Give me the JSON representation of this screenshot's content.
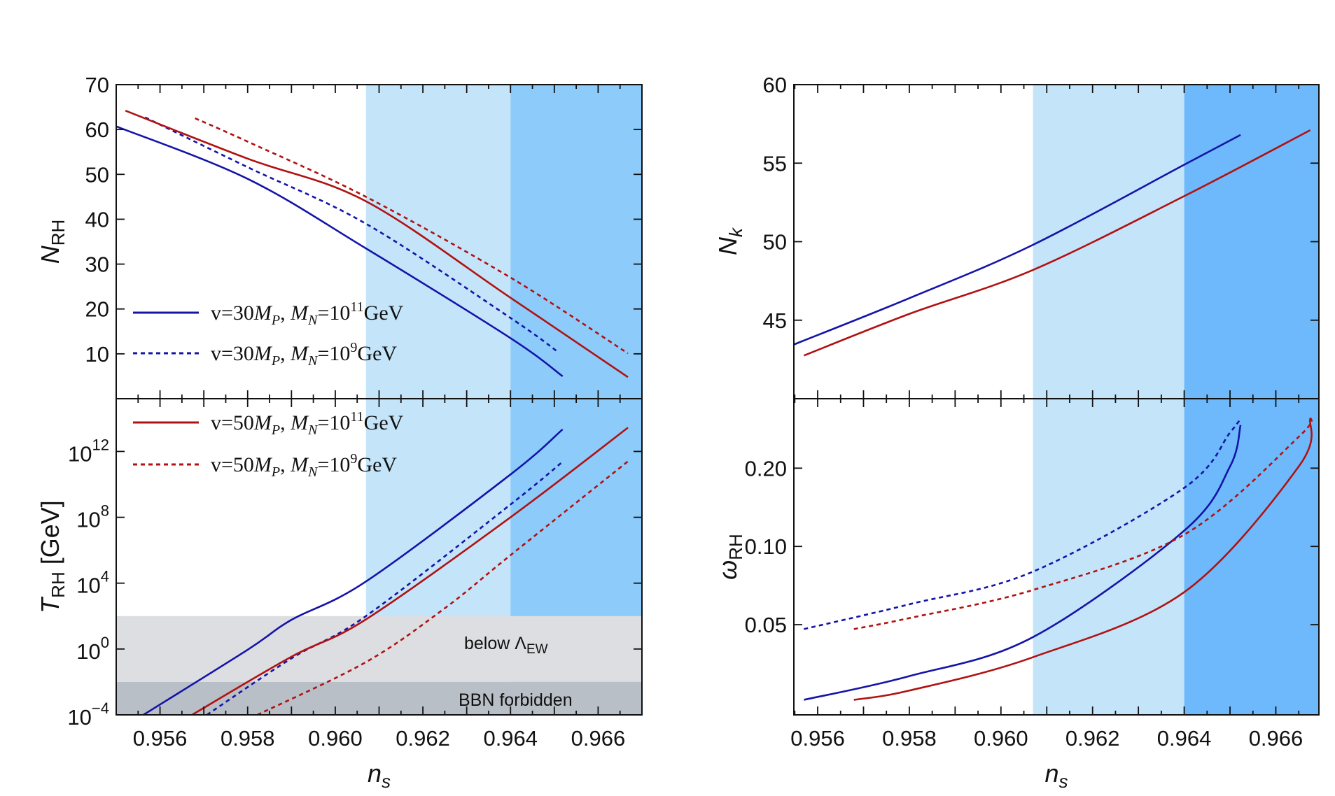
{
  "colors": {
    "blue": "#1414a8",
    "red": "#b01212",
    "shade_light": "#c4e4f9",
    "shade_dark_left": "#8ccbfa",
    "shade_dark_right": "#6eb9fb",
    "gray_light": "#dcdee2",
    "gray_dark": "#b9bfc6"
  },
  "chart_data": [
    {
      "id": "nrh",
      "type": "line",
      "ylabel": {
        "main": "N",
        "sub": "RH"
      },
      "xlim": [
        0.955,
        0.967
      ],
      "ylim": [
        0,
        70
      ],
      "yscale": "linear",
      "yticks": [
        10,
        20,
        30,
        40,
        50,
        60,
        70
      ],
      "ytick_labels": [
        "10",
        "20",
        "30",
        "40",
        "50",
        "60",
        "70"
      ],
      "shaded_x": [
        {
          "from": 0.9607,
          "to": 0.964,
          "shade": "light"
        },
        {
          "from": 0.964,
          "to": 0.967,
          "shade": "dark"
        }
      ],
      "series": [
        {
          "name_ref": 0,
          "color": "blue",
          "dash": false,
          "x": [
            0.955,
            0.958,
            0.9607,
            0.964,
            0.96519
          ],
          "y": [
            60.7,
            49,
            33.5,
            13.5,
            5
          ]
        },
        {
          "name_ref": 1,
          "color": "blue",
          "dash": true,
          "x": [
            0.95566,
            0.958,
            0.9607,
            0.964,
            0.9651
          ],
          "y": [
            62.7,
            51.6,
            39,
            18,
            10.3
          ]
        },
        {
          "name_ref": 2,
          "color": "red",
          "dash": false,
          "x": [
            0.95521,
            0.958,
            0.9607,
            0.964,
            0.96668
          ],
          "y": [
            64.2,
            53.5,
            44,
            22.5,
            4.8
          ]
        },
        {
          "name_ref": 3,
          "color": "red",
          "dash": true,
          "x": [
            0.9568,
            0.958,
            0.9607,
            0.964,
            0.96668
          ],
          "y": [
            62.5,
            57.3,
            45,
            27,
            10.1
          ]
        }
      ]
    },
    {
      "id": "trh",
      "type": "line",
      "xlabel": "n",
      "xlabel_sub": "s",
      "ylabel": {
        "main": "T",
        "sub": "RH",
        "unit": " [GeV]"
      },
      "xlim": [
        0.955,
        0.967
      ],
      "ylim": [
        0.0001,
        1600000000000000.0
      ],
      "yscale": "log",
      "xticks": [
        0.956,
        0.958,
        0.96,
        0.962,
        0.964,
        0.966
      ],
      "xtick_labels": [
        "0.956",
        "0.958",
        "0.960",
        "0.962",
        "0.964",
        "0.966"
      ],
      "yticks": [
        0.0001,
        1,
        10000.0,
        100000000.0,
        1000000000000.0
      ],
      "ytick_labels": [
        {
          "base": "10",
          "exp": "−4"
        },
        {
          "base": "10",
          "exp": "0"
        },
        {
          "base": "10",
          "exp": "4"
        },
        {
          "base": "10",
          "exp": "8"
        },
        {
          "base": "10",
          "exp": "12"
        }
      ],
      "shaded_x": [
        {
          "from": 0.9607,
          "to": 0.964,
          "shade": "light"
        },
        {
          "from": 0.964,
          "to": 0.967,
          "shade": "dark"
        }
      ],
      "bands_y": [
        {
          "from": 0.01,
          "to": 100,
          "shade": "gray_light",
          "label": "below Λ",
          "label_sub": "EW"
        },
        {
          "from": 0.0001,
          "to": 0.01,
          "shade": "gray_dark",
          "label": "BBN forbidden"
        }
      ],
      "series": [
        {
          "color": "blue",
          "dash": false,
          "x": [
            0.95562,
            0.958,
            0.959,
            0.9607,
            0.964,
            0.96519
          ],
          "y": [
            0.0001,
            0.9,
            59,
            12600.0,
            40000000000.0,
            22000000000000.0
          ]
        },
        {
          "color": "blue",
          "dash": true,
          "x": [
            0.95707,
            0.959,
            0.9607,
            0.964,
            0.9652
          ],
          "y": [
            0.0001,
            0.27,
            100,
            600000000.0,
            250000000000.0
          ]
        },
        {
          "color": "red",
          "dash": false,
          "x": [
            0.95673,
            0.959,
            0.9607,
            0.964,
            0.96668
          ],
          "y": [
            0.0001,
            0.34,
            63,
            100000000.0,
            28000000000000.0
          ]
        },
        {
          "color": "red",
          "dash": true,
          "x": [
            0.95822,
            0.9607,
            0.9625,
            0.964,
            0.96668
          ],
          "y": [
            0.0001,
            0.16,
            300,
            500000.0,
            250000000000.0
          ]
        }
      ]
    },
    {
      "id": "nk",
      "type": "line",
      "ylabel": {
        "main": "N",
        "sub": "k"
      },
      "xlim": [
        0.95548,
        0.96694
      ],
      "ylim": [
        40,
        60
      ],
      "yscale": "linear",
      "yticks": [
        45,
        50,
        55,
        60
      ],
      "ytick_labels": [
        "45",
        "50",
        "55",
        "60"
      ],
      "shaded_x": [
        {
          "from": 0.9607,
          "to": 0.964,
          "shade": "light"
        },
        {
          "from": 0.964,
          "to": 0.96694,
          "shade": "dark"
        }
      ],
      "series": [
        {
          "color": "blue",
          "dash": false,
          "x": [
            0.95548,
            0.958,
            0.9607,
            0.964,
            0.96523
          ],
          "y": [
            43.45,
            46.4,
            49.8,
            54.9,
            56.8
          ]
        },
        {
          "color": "red",
          "dash": false,
          "x": [
            0.9557,
            0.958,
            0.9607,
            0.964,
            0.96675
          ],
          "y": [
            42.75,
            45.4,
            48.2,
            52.9,
            57.1
          ]
        }
      ]
    },
    {
      "id": "omega",
      "type": "line",
      "xlabel": "n",
      "xlabel_sub": "s",
      "ylabel": {
        "main": "ω",
        "sub": "RH"
      },
      "xlim": [
        0.95548,
        0.96694
      ],
      "ylim": [
        0.0225,
        0.37
      ],
      "yscale": "log",
      "xticks": [
        0.956,
        0.958,
        0.96,
        0.962,
        0.964,
        0.966
      ],
      "xtick_labels": [
        "0.956",
        "0.958",
        "0.960",
        "0.962",
        "0.964",
        "0.966"
      ],
      "yticks": [
        0.05,
        0.1,
        0.2
      ],
      "ytick_labels": [
        "0.05",
        "0.10",
        "0.20"
      ],
      "shaded_x": [
        {
          "from": 0.9607,
          "to": 0.964,
          "shade": "light"
        },
        {
          "from": 0.964,
          "to": 0.96694,
          "shade": "dark"
        }
      ],
      "series": [
        {
          "color": "blue",
          "dash": false,
          "x": [
            0.9557,
            0.958,
            0.9607,
            0.964,
            0.965,
            0.96523
          ],
          "y": [
            0.0257,
            0.0317,
            0.0448,
            0.115,
            0.203,
            0.293
          ]
        },
        {
          "color": "blue",
          "dash": true,
          "x": [
            0.9557,
            0.958,
            0.9607,
            0.964,
            0.965,
            0.96523
          ],
          "y": [
            0.0481,
            0.0599,
            0.08,
            0.168,
            0.274,
            0.31
          ]
        },
        {
          "color": "red",
          "dash": false,
          "x": [
            0.95679,
            0.958,
            0.9607,
            0.964,
            0.9665,
            0.96675
          ],
          "y": [
            0.0257,
            0.0279,
            0.0375,
            0.0667,
            0.203,
            0.31
          ]
        },
        {
          "color": "red",
          "dash": true,
          "x": [
            0.95679,
            0.958,
            0.9607,
            0.964,
            0.9665,
            0.96675
          ],
          "y": [
            0.0481,
            0.053,
            0.068,
            0.111,
            0.264,
            0.316
          ]
        }
      ]
    }
  ],
  "legend": [
    {
      "color": "blue",
      "dash": false,
      "parts": [
        {
          "t": "v=30"
        },
        {
          "t": "M",
          "i": true
        },
        {
          "t": "P",
          "i": true,
          "sub": true
        },
        {
          "t": ", "
        },
        {
          "t": "M",
          "i": true
        },
        {
          "t": "N",
          "i": true,
          "sub": true
        },
        {
          "t": "=10"
        },
        {
          "t": "11",
          "sup": true
        },
        {
          "t": "GeV"
        }
      ]
    },
    {
      "color": "blue",
      "dash": true,
      "parts": [
        {
          "t": "v=30"
        },
        {
          "t": "M",
          "i": true
        },
        {
          "t": "P",
          "i": true,
          "sub": true
        },
        {
          "t": ", "
        },
        {
          "t": "M",
          "i": true
        },
        {
          "t": "N",
          "i": true,
          "sub": true
        },
        {
          "t": "=10"
        },
        {
          "t": "9",
          "sup": true
        },
        {
          "t": "GeV"
        }
      ]
    },
    {
      "color": "red",
      "dash": false,
      "parts": [
        {
          "t": "v=50"
        },
        {
          "t": "M",
          "i": true
        },
        {
          "t": "P",
          "i": true,
          "sub": true
        },
        {
          "t": ", "
        },
        {
          "t": "M",
          "i": true
        },
        {
          "t": "N",
          "i": true,
          "sub": true
        },
        {
          "t": "=10"
        },
        {
          "t": "11",
          "sup": true
        },
        {
          "t": "GeV"
        }
      ]
    },
    {
      "color": "red",
      "dash": true,
      "parts": [
        {
          "t": "v=50"
        },
        {
          "t": "M",
          "i": true
        },
        {
          "t": "P",
          "i": true,
          "sub": true
        },
        {
          "t": ", "
        },
        {
          "t": "M",
          "i": true
        },
        {
          "t": "N",
          "i": true,
          "sub": true
        },
        {
          "t": "=10"
        },
        {
          "t": "9",
          "sup": true
        },
        {
          "t": "GeV"
        }
      ]
    }
  ]
}
